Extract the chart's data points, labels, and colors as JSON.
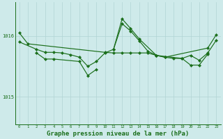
{
  "background_color": "#ceeaea",
  "grid_color": "#b0d4d4",
  "line_color": "#1a6e1a",
  "xlabel": "Graphe pression niveau de la mer (hPa)",
  "xlabel_fontsize": 6.5,
  "ylabel_ticks": [
    1015,
    1016
  ],
  "xlim": [
    -0.5,
    23.5
  ],
  "ylim": [
    1014.55,
    1016.55
  ],
  "x": [
    0,
    1,
    2,
    3,
    4,
    5,
    6,
    7,
    8,
    9,
    10,
    11,
    12,
    13,
    14,
    15,
    16,
    17,
    18,
    19,
    20,
    21,
    22,
    23
  ],
  "series1": [
    1016.05,
    1015.87,
    null,
    null,
    null,
    null,
    null,
    null,
    null,
    null,
    1015.73,
    1015.72,
    1015.72,
    1015.72,
    1015.72,
    1015.72,
    1015.68,
    1015.65,
    null,
    null,
    null,
    null,
    1015.8,
    1016.02
  ],
  "series2": [
    1015.9,
    null,
    1015.78,
    1015.73,
    1015.73,
    1015.72,
    1015.69,
    1015.65,
    1015.5,
    1015.58,
    1015.72,
    1015.78,
    1016.2,
    1016.08,
    1015.92,
    1015.75,
    1015.68,
    1015.65,
    1015.63,
    1015.63,
    1015.68,
    1015.6,
    1015.72,
    1015.93
  ],
  "series3": [
    null,
    null,
    1015.72,
    1015.62,
    1015.62,
    null,
    null,
    1015.58,
    1015.35,
    1015.45,
    null,
    null,
    null,
    null,
    null,
    null,
    null,
    null,
    null,
    null,
    null,
    null,
    null,
    null
  ],
  "series4": [
    null,
    null,
    null,
    null,
    null,
    null,
    null,
    null,
    null,
    null,
    null,
    1015.78,
    1016.28,
    1016.12,
    1015.95,
    null,
    1015.68,
    null,
    null,
    1015.63,
    1015.52,
    1015.52,
    1015.7,
    null
  ]
}
